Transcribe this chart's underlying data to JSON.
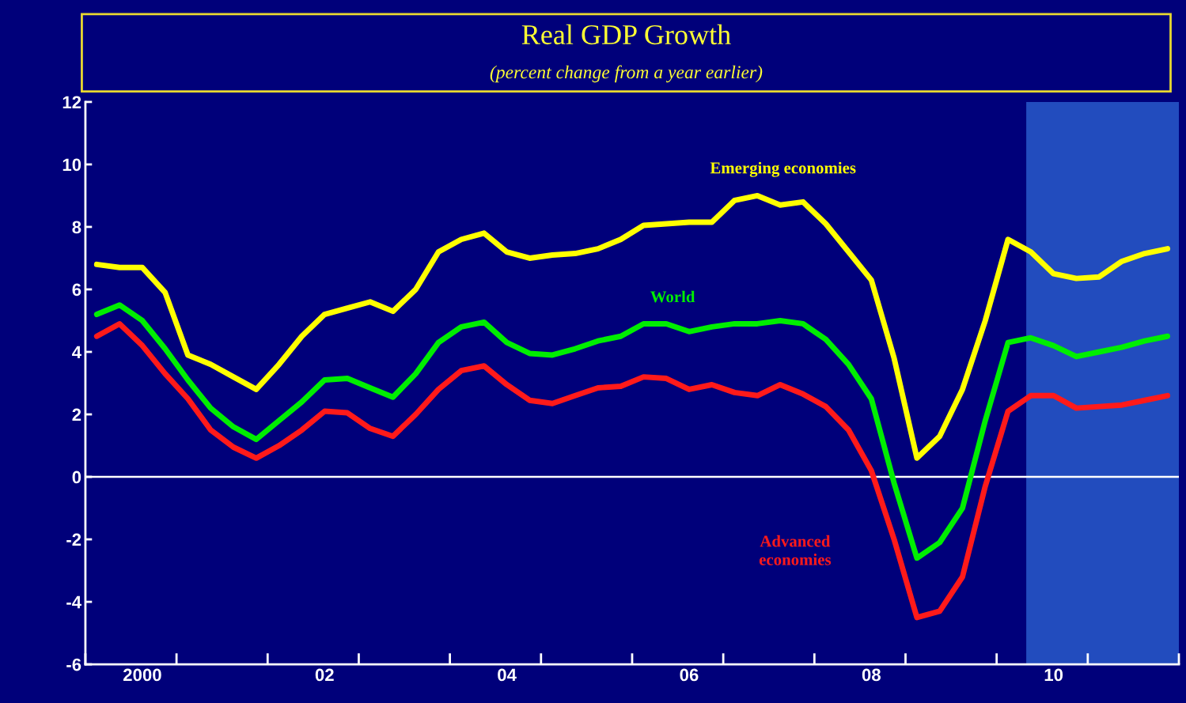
{
  "chart_data": {
    "type": "line",
    "title": "Real GDP Growth",
    "subtitle": "(percent change from a year earlier)",
    "categories": [
      null,
      null,
      "2000",
      null,
      null,
      null,
      null,
      null,
      null,
      null,
      "02",
      null,
      null,
      null,
      null,
      null,
      null,
      null,
      "04",
      null,
      null,
      null,
      null,
      null,
      null,
      null,
      "06",
      null,
      null,
      null,
      null,
      null,
      null,
      null,
      "08",
      null,
      null,
      null,
      null,
      null,
      null,
      null,
      "10",
      null,
      null,
      null,
      null,
      null
    ],
    "series": [
      {
        "name": "Emerging economies",
        "color": "#ffff00",
        "values": [
          6.8,
          6.7,
          6.7,
          5.9,
          3.9,
          3.6,
          3.2,
          2.8,
          3.6,
          4.5,
          5.2,
          5.4,
          5.6,
          5.3,
          6.0,
          7.2,
          7.6,
          7.8,
          7.2,
          7.0,
          7.1,
          7.15,
          7.3,
          7.6,
          8.05,
          8.1,
          8.15,
          8.15,
          8.85,
          9.0,
          8.7,
          8.8,
          8.1,
          7.2,
          6.3,
          3.8,
          0.6,
          1.3,
          2.8,
          5.0,
          7.6,
          7.2,
          6.5,
          6.35,
          6.4,
          6.9,
          7.15,
          7.3
        ]
      },
      {
        "name": "World",
        "color": "#00ee00",
        "values": [
          5.2,
          5.5,
          5.0,
          4.1,
          3.1,
          2.2,
          1.6,
          1.2,
          1.8,
          2.4,
          3.1,
          3.15,
          2.85,
          2.55,
          3.3,
          4.3,
          4.8,
          4.95,
          4.3,
          3.95,
          3.9,
          4.1,
          4.35,
          4.5,
          4.9,
          4.9,
          4.65,
          4.8,
          4.9,
          4.9,
          5.0,
          4.9,
          4.4,
          3.6,
          2.5,
          -0.2,
          -2.6,
          -2.1,
          -1.0,
          1.8,
          4.3,
          4.45,
          4.2,
          3.85,
          4.0,
          4.15,
          4.35,
          4.5
        ]
      },
      {
        "name": "Advanced\neconomies",
        "color": "#ff1a1a",
        "values": [
          4.5,
          4.9,
          4.2,
          3.3,
          2.5,
          1.5,
          0.95,
          0.6,
          1.0,
          1.5,
          2.1,
          2.05,
          1.55,
          1.3,
          2.0,
          2.8,
          3.4,
          3.55,
          2.95,
          2.45,
          2.35,
          2.6,
          2.85,
          2.9,
          3.2,
          3.15,
          2.8,
          2.95,
          2.7,
          2.6,
          2.95,
          2.65,
          2.25,
          1.5,
          0.2,
          -2.0,
          -4.5,
          -4.3,
          -3.2,
          -0.3,
          2.1,
          2.6,
          2.6,
          2.2,
          2.25,
          2.3,
          2.45,
          2.6
        ]
      }
    ],
    "ylim": [
      -6,
      12
    ],
    "yticks": [
      -6,
      -4,
      -2,
      0,
      2,
      4,
      6,
      8,
      10,
      12
    ],
    "ref_lines": [
      {
        "axis": "y",
        "value": 0,
        "color": "#ffffff"
      }
    ],
    "grid": false,
    "legend": false,
    "marker": "none",
    "line_style": "solid"
  }
}
